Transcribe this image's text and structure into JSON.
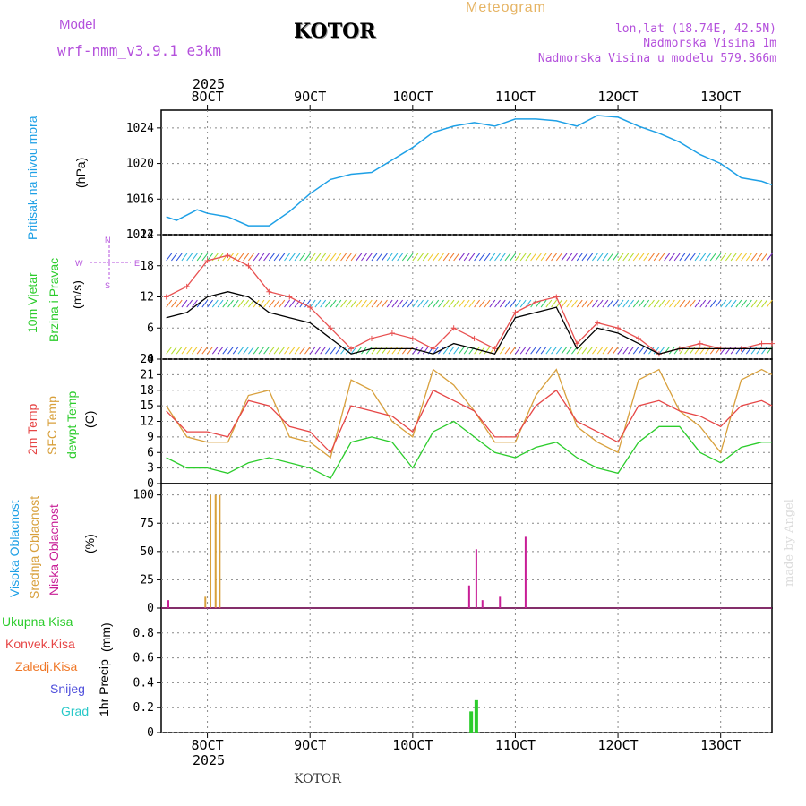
{
  "header": {
    "model_label": "Model",
    "model_value": "wrf-nmm_v3.9.1 e3km",
    "title": "KOTOR",
    "meteogram_label": "Meteogram",
    "location": "lon,lat (18.74E, 42.5N)",
    "altitude": "Nadmorska Visina 1m",
    "model_altitude": "Nadmorska Visina u modelu 579.366m",
    "footer_title": "KOTOR",
    "watermark": "made by Angel"
  },
  "colors": {
    "pressure": "#1ea0e6",
    "wind_speed": "#000000",
    "gust": "#e85050",
    "t2m": "#e64646",
    "sfc": "#d8a03c",
    "dewpoint": "#2ccc2c",
    "high_cloud": "#1ea0e6",
    "mid_cloud": "#d8a03c",
    "low_cloud": "#c81e96",
    "total_precip": "#2ccc2c",
    "conv_precip": "#e64646",
    "frozen_precip": "#f07828",
    "snow": "#5050dc",
    "hail": "#28c8c8",
    "grid": "#888888"
  },
  "chart_data": [
    {
      "id": "pressure",
      "type": "line",
      "title": "Pritisak na nivou mora",
      "ylabel": "(hPa)",
      "ylim": [
        1012,
        1026
      ],
      "yticks": [
        "1012",
        "1016",
        "1020",
        "1024"
      ],
      "x": [
        7.6,
        7.7,
        7.9,
        8.0,
        8.2,
        8.4,
        8.6,
        8.8,
        9.0,
        9.2,
        9.4,
        9.6,
        9.8,
        10.0,
        10.2,
        10.4,
        10.6,
        10.8,
        11.0,
        11.2,
        11.4,
        11.6,
        11.8,
        12.0,
        12.2,
        12.4,
        12.6,
        12.8,
        13.0,
        13.2,
        13.4,
        13.5
      ],
      "values": [
        1014.0,
        1013.6,
        1014.8,
        1014.4,
        1014.0,
        1013.0,
        1013.0,
        1014.6,
        1016.6,
        1018.2,
        1018.8,
        1019.0,
        1020.4,
        1021.8,
        1023.5,
        1024.2,
        1024.6,
        1024.2,
        1025.0,
        1025.0,
        1024.8,
        1024.2,
        1025.4,
        1025.2,
        1024.2,
        1023.4,
        1022.4,
        1021.0,
        1020.0,
        1018.4,
        1018.0,
        1017.6
      ]
    },
    {
      "id": "wind",
      "type": "line",
      "title": "10m Vjetar",
      "subtitle": "Brzina i Pravac",
      "ylabel": "(m/s)",
      "ylim": [
        0,
        24
      ],
      "yticks": [
        "0",
        "6",
        "12",
        "18",
        "24"
      ],
      "compass": {
        "n": "N",
        "e": "E",
        "s": "S",
        "w": "W"
      },
      "series": [
        {
          "name": "wind speed",
          "x": [
            7.6,
            7.8,
            8.0,
            8.2,
            8.4,
            8.6,
            8.8,
            9.0,
            9.2,
            9.4,
            9.6,
            9.8,
            10.0,
            10.2,
            10.4,
            10.6,
            10.8,
            11.0,
            11.2,
            11.4,
            11.6,
            11.8,
            12.0,
            12.2,
            12.4,
            12.6,
            12.8,
            13.0,
            13.2,
            13.4,
            13.5
          ],
          "values": [
            8,
            9,
            12,
            13,
            12,
            9,
            8,
            7,
            4,
            1,
            2,
            2,
            2,
            1,
            3,
            2,
            1,
            8,
            9,
            10,
            2,
            6,
            5,
            3,
            1,
            2,
            2,
            2,
            2,
            2,
            2
          ]
        },
        {
          "name": "wind gust",
          "x": [
            7.6,
            7.8,
            8.0,
            8.2,
            8.4,
            8.6,
            8.8,
            9.0,
            9.2,
            9.4,
            9.6,
            9.8,
            10.0,
            10.2,
            10.4,
            10.6,
            10.8,
            11.0,
            11.2,
            11.4,
            11.6,
            11.8,
            12.0,
            12.2,
            12.4,
            12.6,
            12.8,
            13.0,
            13.2,
            13.4,
            13.5
          ],
          "values": [
            12,
            14,
            19,
            20,
            18,
            13,
            12,
            10,
            6,
            2,
            4,
            5,
            4,
            2,
            6,
            4,
            2,
            9,
            11,
            12,
            3,
            7,
            6,
            4,
            1,
            2,
            3,
            2,
            2,
            3,
            3
          ]
        }
      ]
    },
    {
      "id": "temperature",
      "type": "line",
      "title": "2m Temp",
      "subtitle": "SFC Temp",
      "subtitle2": "dewpt Temp",
      "ylabel": "(C)",
      "ylim": [
        0,
        24
      ],
      "yticks": [
        "0",
        "3",
        "6",
        "9",
        "12",
        "15",
        "18",
        "21",
        "24"
      ],
      "x": [
        7.6,
        7.8,
        8.0,
        8.2,
        8.4,
        8.6,
        8.8,
        9.0,
        9.2,
        9.4,
        9.6,
        9.8,
        10.0,
        10.2,
        10.4,
        10.6,
        10.8,
        11.0,
        11.2,
        11.4,
        11.6,
        11.8,
        12.0,
        12.2,
        12.4,
        12.6,
        12.8,
        13.0,
        13.2,
        13.4,
        13.5
      ],
      "series": [
        {
          "name": "2m Temp",
          "values": [
            14,
            10,
            10,
            9,
            16,
            15,
            11,
            10,
            6,
            15,
            14,
            13,
            10,
            18,
            16,
            14,
            9,
            9,
            15,
            18,
            12,
            10,
            8,
            15,
            16,
            14,
            13,
            11,
            15,
            16,
            15
          ]
        },
        {
          "name": "SFC Temp",
          "values": [
            15,
            9,
            8,
            8,
            17,
            18,
            9,
            8,
            5,
            20,
            18,
            12,
            9,
            22,
            19,
            14,
            8,
            8,
            17,
            22,
            11,
            8,
            6,
            20,
            22,
            14,
            11,
            6,
            20,
            22,
            21
          ]
        },
        {
          "name": "dewpt Temp",
          "values": [
            5,
            3,
            3,
            2,
            4,
            5,
            4,
            3,
            1,
            8,
            9,
            8,
            3,
            10,
            12,
            9,
            6,
            5,
            7,
            8,
            5,
            3,
            2,
            8,
            11,
            11,
            6,
            4,
            7,
            8,
            8
          ]
        }
      ]
    },
    {
      "id": "clouds",
      "type": "bar",
      "title": "Visoka Oblacnost",
      "subtitle": "Srednja Oblacnost",
      "subtitle2": "Niska Oblacnost",
      "ylabel": "(%)",
      "ylim": [
        0,
        110
      ],
      "yticks": [
        "0",
        "25",
        "50",
        "75",
        "100"
      ],
      "series": [
        {
          "name": "Srednja Oblacnost",
          "x": [
            7.98,
            8.03,
            8.08,
            8.12
          ],
          "values": [
            10,
            100,
            100,
            100
          ]
        },
        {
          "name": "Niska Oblacnost",
          "x": [
            7.62,
            10.55,
            10.62,
            10.68,
            10.85,
            11.1
          ],
          "values": [
            7,
            20,
            52,
            7,
            10,
            63
          ]
        }
      ]
    },
    {
      "id": "precip",
      "type": "bar",
      "title": "1hr Precip",
      "ylabel": "(mm)",
      "ylim": [
        0,
        1
      ],
      "yticks": [
        "0",
        "0.2",
        "0.4",
        "0.6",
        "0.8"
      ],
      "legend": [
        "Ukupna Kisa",
        "Konvek.Kisa",
        "Zaledj.Kisa",
        "Snijeg",
        "Grad"
      ],
      "series": [
        {
          "name": "Ukupna Kisa",
          "x": [
            10.57,
            10.62
          ],
          "values": [
            0.17,
            0.26
          ]
        }
      ]
    }
  ],
  "x_axis": {
    "ticks": [
      8,
      9,
      10,
      11,
      12,
      13
    ],
    "labels": [
      "8OCT",
      "9OCT",
      "10OCT",
      "11OCT",
      "12OCT",
      "13OCT"
    ],
    "year": "2025"
  }
}
